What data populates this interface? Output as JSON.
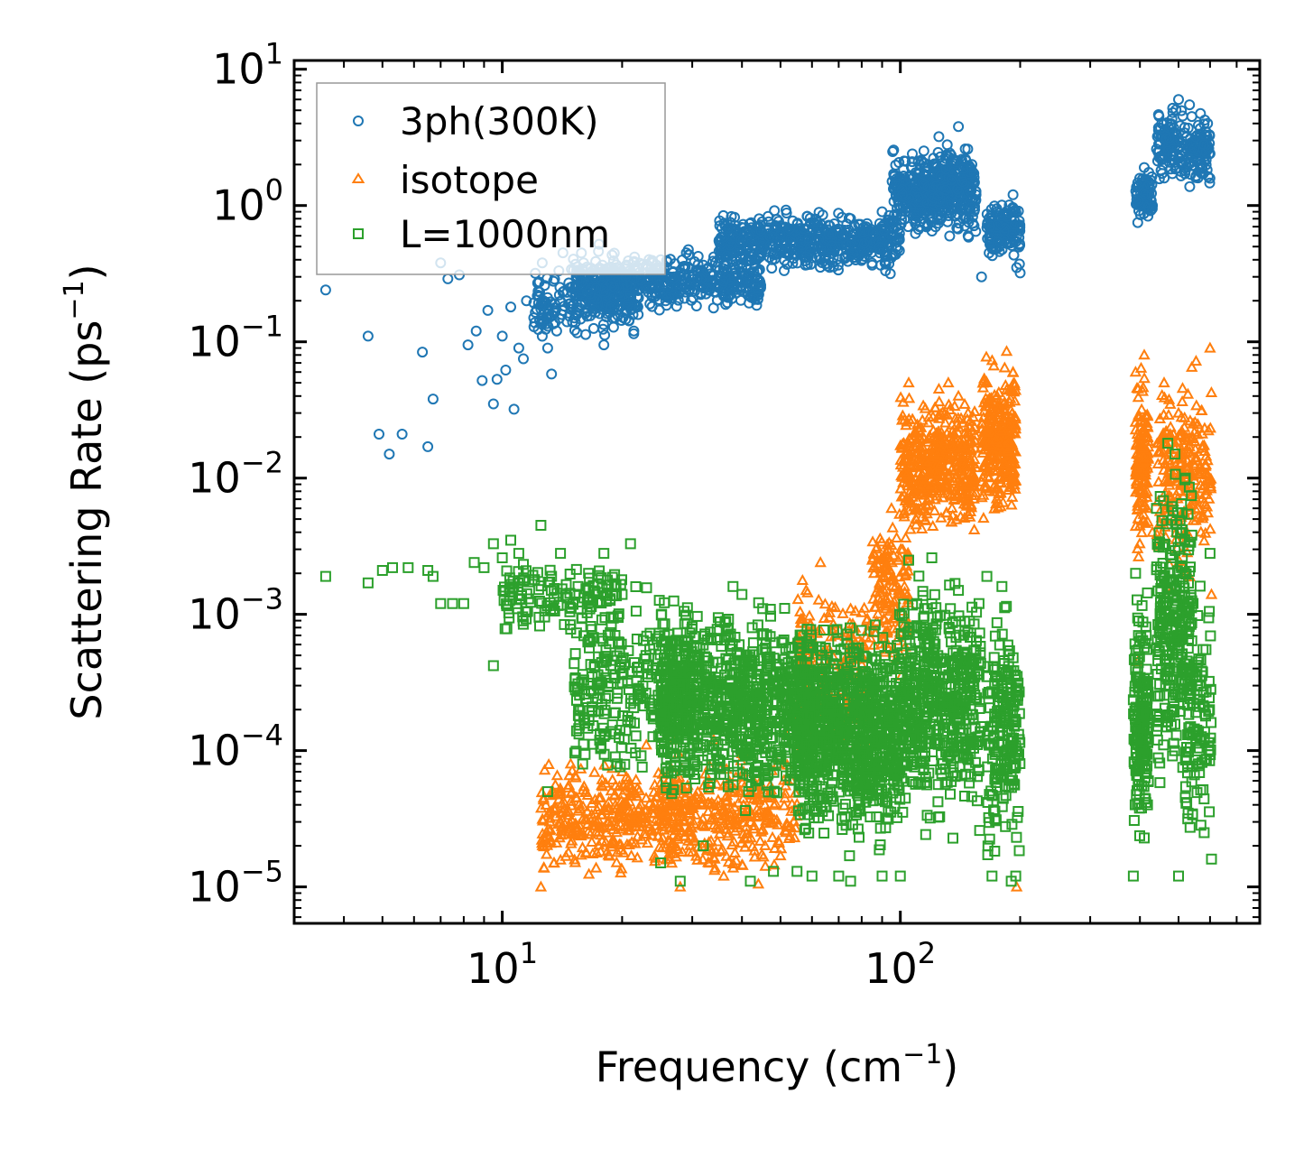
{
  "chart_data": {
    "type": "scatter",
    "xscale": "log",
    "yscale": "log",
    "xlim": [
      3.0,
      800
    ],
    "ylim": [
      5.4e-06,
      11.6
    ],
    "x_tick_labels": [
      {
        "base": "10",
        "exp": "1",
        "value": 10
      },
      {
        "base": "10",
        "exp": "2",
        "value": 100
      }
    ],
    "y_tick_labels": [
      {
        "base": "10",
        "exp": "1",
        "value": 10
      },
      {
        "base": "10",
        "exp": "0",
        "value": 1
      },
      {
        "base": "10",
        "exp": "−1",
        "value": 0.1
      },
      {
        "base": "10",
        "exp": "−2",
        "value": 0.01
      },
      {
        "base": "10",
        "exp": "−3",
        "value": 0.001
      },
      {
        "base": "10",
        "exp": "−4",
        "value": 0.0001
      },
      {
        "base": "10",
        "exp": "−5",
        "value": 1e-05
      }
    ],
    "xlabel": {
      "text": "Frequency (cm",
      "sup": "−1",
      "tail": ")"
    },
    "ylabel": {
      "text": "Scattering Rate (ps",
      "sup": "−1",
      "tail": ")"
    },
    "legend_position": "top-left",
    "series": [
      {
        "name": "3ph(300K)",
        "marker": "circle",
        "color": "#1f77b4",
        "points": [
          [
            3.6,
            0.24
          ],
          [
            4.6,
            0.11
          ],
          [
            4.9,
            0.021
          ],
          [
            5.2,
            0.015
          ],
          [
            5.6,
            0.021
          ],
          [
            6.3,
            0.084
          ],
          [
            6.5,
            0.017
          ],
          [
            6.7,
            0.038
          ],
          [
            7.0,
            0.38
          ],
          [
            7.3,
            0.29
          ],
          [
            7.8,
            0.31
          ],
          [
            8.2,
            0.095
          ],
          [
            8.6,
            0.12
          ],
          [
            8.9,
            0.052
          ],
          [
            9.2,
            0.17
          ],
          [
            9.5,
            0.035
          ],
          [
            9.7,
            0.053
          ],
          [
            10.0,
            0.11
          ],
          [
            10.2,
            0.062
          ],
          [
            10.5,
            0.18
          ],
          [
            10.7,
            0.032
          ],
          [
            11.0,
            0.09
          ],
          [
            11.3,
            0.075
          ],
          [
            11.5,
            0.2
          ],
          [
            12.0,
            0.15
          ],
          [
            12.3,
            0.22
          ],
          [
            12.6,
            0.38
          ],
          [
            13.0,
            0.09
          ],
          [
            13.3,
            0.058
          ],
          [
            13.7,
            0.12
          ],
          [
            14.2,
            0.45
          ],
          [
            14.8,
            0.25
          ],
          [
            15.5,
            0.17
          ],
          [
            16.0,
            0.38
          ],
          [
            16.8,
            0.3
          ],
          [
            17.5,
            0.52
          ],
          [
            18.0,
            0.095
          ],
          [
            18.5,
            0.2
          ],
          [
            19.2,
            0.15
          ],
          [
            20.0,
            0.3
          ],
          [
            21.0,
            0.22
          ],
          [
            22.0,
            0.35
          ],
          [
            23.5,
            0.25
          ],
          [
            25.0,
            0.4
          ],
          [
            27.0,
            0.3
          ],
          [
            29.0,
            0.45
          ],
          [
            31.0,
            0.33
          ],
          [
            34.0,
            0.42
          ],
          [
            37.0,
            0.5
          ],
          [
            40.0,
            0.38
          ],
          [
            44.0,
            0.55
          ],
          [
            48.0,
            0.45
          ],
          [
            52.0,
            0.6
          ],
          [
            57.0,
            0.5
          ],
          [
            62.0,
            0.65
          ],
          [
            68.0,
            0.55
          ],
          [
            75.0,
            0.8
          ],
          [
            82.0,
            0.7
          ],
          [
            90.0,
            0.9
          ],
          [
            98.0,
            0.85
          ],
          [
            105.0,
            1.1
          ],
          [
            112.0,
            2.0
          ],
          [
            118.0,
            1.4
          ],
          [
            125.0,
            3.2
          ],
          [
            132.0,
            1.6
          ],
          [
            140.0,
            3.8
          ],
          [
            148.0,
            0.6
          ],
          [
            155.0,
            1.2
          ],
          [
            160.0,
            0.3
          ],
          [
            175.0,
            0.9
          ],
          [
            183.0,
            0.75
          ],
          [
            192.0,
            1.2
          ],
          [
            196.0,
            0.35
          ],
          [
            200.0,
            0.32
          ],
          [
            395.0,
            0.75
          ],
          [
            410.0,
            1.9
          ],
          [
            430.0,
            1.0
          ],
          [
            455.0,
            2.2
          ],
          [
            480.0,
            3.0
          ],
          [
            500.0,
            6.0
          ],
          [
            520.0,
            1.8
          ],
          [
            540.0,
            4.5
          ],
          [
            565.0,
            2.0
          ],
          [
            590.0,
            3.2
          ],
          [
            600.0,
            2.4
          ]
        ],
        "clusters": [
          {
            "x": [
              12,
              22
            ],
            "y": [
              0.1,
              0.4
            ],
            "n": 240
          },
          {
            "x": [
              15,
              45
            ],
            "y": [
              0.15,
              0.5
            ],
            "n": 480
          },
          {
            "x": [
              35,
              100
            ],
            "y": [
              0.3,
              1.0
            ],
            "n": 560
          },
          {
            "x": [
              95,
              120
            ],
            "y": [
              0.5,
              3.0
            ],
            "n": 220
          },
          {
            "x": [
              120,
              155
            ],
            "y": [
              0.5,
              3.6
            ],
            "n": 280
          },
          {
            "x": [
              165,
              200
            ],
            "y": [
              0.35,
              1.2
            ],
            "n": 150
          },
          {
            "x": [
              390,
              430
            ],
            "y": [
              0.75,
              2.0
            ],
            "n": 80
          },
          {
            "x": [
              440,
              600
            ],
            "y": [
              1.2,
              6.0
            ],
            "n": 200
          }
        ]
      },
      {
        "name": "isotope",
        "marker": "triangle",
        "color": "#ff7f0e",
        "points": [
          [
            12.5,
            1e-05
          ],
          [
            13.5,
            1.5e-05
          ],
          [
            15.0,
            2.5e-05
          ],
          [
            17.5,
            4.5e-05
          ],
          [
            20.0,
            7e-05
          ],
          [
            23.0,
            0.00011
          ],
          [
            27.0,
            0.00012
          ],
          [
            28.0,
            1e-05
          ],
          [
            34.0,
            0.00012
          ],
          [
            36.0,
            1.2e-05
          ],
          [
            40.0,
            9.5e-05
          ],
          [
            44.0,
            1.05e-05
          ],
          [
            52.0,
            0.00013
          ],
          [
            58.0,
            0.0015
          ],
          [
            63.0,
            0.0024
          ],
          [
            75.0,
            0.0011
          ],
          [
            85.0,
            0.0025
          ],
          [
            95.0,
            0.006
          ],
          [
            105.0,
            0.05
          ],
          [
            110.0,
            0.012
          ],
          [
            118.0,
            0.028
          ],
          [
            125.0,
            0.045
          ],
          [
            132.0,
            0.05
          ],
          [
            140.0,
            0.04
          ],
          [
            148.0,
            0.03
          ],
          [
            165.0,
            0.05
          ],
          [
            175.0,
            0.04
          ],
          [
            185.0,
            0.085
          ],
          [
            192.0,
            0.06
          ],
          [
            196.0,
            1e-05
          ],
          [
            390.0,
            0.06
          ],
          [
            395.0,
            0.00045
          ],
          [
            410.0,
            0.08
          ],
          [
            430.0,
            0.004
          ],
          [
            460.0,
            0.05
          ],
          [
            480.0,
            0.0015
          ],
          [
            500.0,
            0.03
          ],
          [
            540.0,
            0.065
          ],
          [
            560.0,
            0.006
          ],
          [
            600.0,
            0.09
          ],
          [
            605.0,
            0.0014
          ]
        ],
        "clusters": [
          {
            "x": [
              12.5,
              28
            ],
            "y": [
              1e-05,
              0.0001
            ],
            "n": 360
          },
          {
            "x": [
              25,
              55
            ],
            "y": [
              1e-05,
              0.00012
            ],
            "n": 320
          },
          {
            "x": [
              55,
              85
            ],
            "y": [
              6e-05,
              0.0025
            ],
            "n": 200
          },
          {
            "x": [
              85,
              105
            ],
            "y": [
              0.0003,
              0.008
            ],
            "n": 140
          },
          {
            "x": [
              100,
              155
            ],
            "y": [
              0.003,
              0.05
            ],
            "n": 460
          },
          {
            "x": [
              160,
              195
            ],
            "y": [
              0.004,
              0.085
            ],
            "n": 300
          },
          {
            "x": [
              390,
              420
            ],
            "y": [
              0.002,
              0.08
            ],
            "n": 140
          },
          {
            "x": [
              440,
              605
            ],
            "y": [
              0.0015,
              0.09
            ],
            "n": 240
          }
        ]
      },
      {
        "name": "L=1000nm",
        "marker": "square",
        "color": "#2ca02c",
        "points": [
          [
            3.6,
            0.0019
          ],
          [
            4.6,
            0.0017
          ],
          [
            5.0,
            0.0021
          ],
          [
            5.3,
            0.0022
          ],
          [
            5.8,
            0.0022
          ],
          [
            6.5,
            0.0021
          ],
          [
            6.7,
            0.0019
          ],
          [
            7.0,
            0.0012
          ],
          [
            7.5,
            0.0012
          ],
          [
            8.0,
            0.0012
          ],
          [
            8.5,
            0.0024
          ],
          [
            9.0,
            0.0022
          ],
          [
            9.5,
            0.0033
          ],
          [
            10.0,
            0.0026
          ],
          [
            10.5,
            0.0035
          ],
          [
            9.5,
            0.00042
          ],
          [
            11.0,
            0.0028
          ],
          [
            12.5,
            0.0045
          ],
          [
            13.0,
            5e-05
          ],
          [
            14.0,
            0.0028
          ],
          [
            15.5,
            0.0016
          ],
          [
            18.0,
            0.0028
          ],
          [
            20.0,
            0.0014
          ],
          [
            21.0,
            0.0033
          ],
          [
            25.0,
            1.5e-05
          ],
          [
            28.0,
            1.1e-05
          ],
          [
            32.0,
            2e-05
          ],
          [
            38.0,
            0.0016
          ],
          [
            40.0,
            0.0014
          ],
          [
            42.0,
            1.1e-05
          ],
          [
            48.0,
            1.3e-05
          ],
          [
            55.0,
            1.3e-05
          ],
          [
            60.0,
            1.2e-05
          ],
          [
            70.0,
            1.2e-05
          ],
          [
            75.0,
            1.1e-05
          ],
          [
            90.0,
            1.2e-05
          ],
          [
            100.0,
            1.2e-05
          ],
          [
            105.0,
            0.0025
          ],
          [
            110.0,
            0.0012
          ],
          [
            120.0,
            0.0026
          ],
          [
            140.0,
            0.0015
          ],
          [
            165.0,
            0.0019
          ],
          [
            170.0,
            1.2e-05
          ],
          [
            180.0,
            0.0016
          ],
          [
            190.0,
            1.1e-05
          ],
          [
            195.0,
            1.2e-05
          ],
          [
            385.0,
            1.2e-05
          ],
          [
            390.0,
            0.002
          ],
          [
            400.0,
            0.00012
          ],
          [
            420.0,
            6e-05
          ],
          [
            440.0,
            0.006
          ],
          [
            470.0,
            0.018
          ],
          [
            490.0,
            0.015
          ],
          [
            500.0,
            1.2e-05
          ],
          [
            520.0,
            0.01
          ],
          [
            540.0,
            0.0004
          ],
          [
            560.0,
            8e-05
          ],
          [
            580.0,
            2.5e-05
          ],
          [
            600.0,
            0.0028
          ],
          [
            605.0,
            1.6e-05
          ]
        ],
        "clusters": [
          {
            "x": [
              10,
              20
            ],
            "y": [
              0.0006,
              0.003
            ],
            "n": 140
          },
          {
            "x": [
              15,
              30
            ],
            "y": [
              4e-05,
              0.002
            ],
            "n": 280
          },
          {
            "x": [
              25,
              60
            ],
            "y": [
              3e-05,
              0.0016
            ],
            "n": 900
          },
          {
            "x": [
              55,
              100
            ],
            "y": [
              1.5e-05,
              0.0013
            ],
            "n": 900
          },
          {
            "x": [
              100,
              160
            ],
            "y": [
              2e-05,
              0.0025
            ],
            "n": 540
          },
          {
            "x": [
              165,
              200
            ],
            "y": [
              1e-05,
              0.0019
            ],
            "n": 200
          },
          {
            "x": [
              385,
              420
            ],
            "y": [
              1.2e-05,
              0.0021
            ],
            "n": 180
          },
          {
            "x": [
              440,
              540
            ],
            "y": [
              3e-05,
              0.018
            ],
            "n": 280
          },
          {
            "x": [
              520,
              605
            ],
            "y": [
              1.5e-05,
              0.003
            ],
            "n": 100
          }
        ]
      }
    ]
  }
}
